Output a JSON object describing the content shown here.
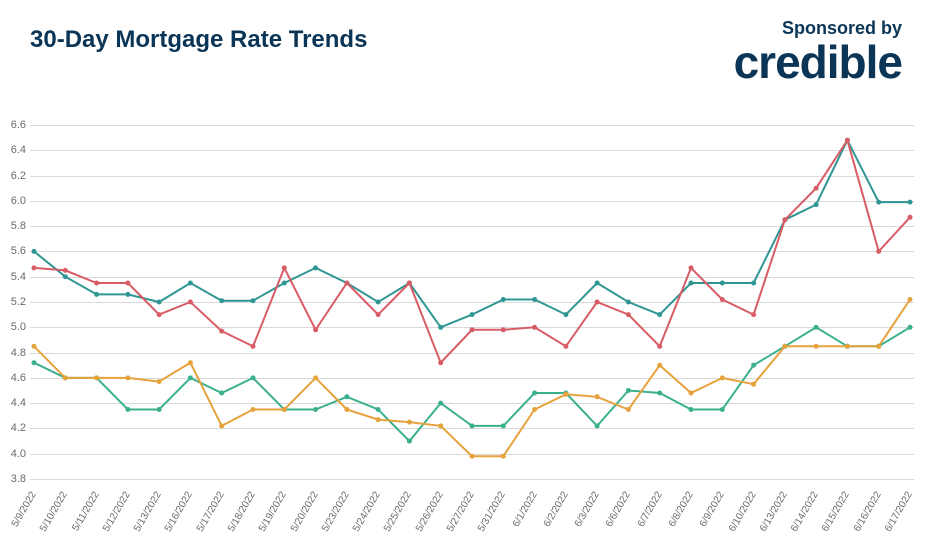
{
  "header": {
    "title": "30-Day Mortgage Rate Trends",
    "sponsor_small": "Sponsored by",
    "sponsor_brand": "credible"
  },
  "chart": {
    "type": "line",
    "background_color": "#ffffff",
    "grid_color": "#d9d9d9",
    "axis_text_color": "#6b6b6b",
    "title_color": "#0a3556",
    "ylim": [
      3.8,
      6.6
    ],
    "ytick_step": 0.2,
    "yticks": [
      3.8,
      4.0,
      4.2,
      4.4,
      4.6,
      4.8,
      5.0,
      5.2,
      5.4,
      5.6,
      5.8,
      6.0,
      6.2,
      6.4,
      6.6
    ],
    "categories": [
      "5/9/2022",
      "5/10/2022",
      "5/11/2022",
      "5/12/2022",
      "5/13/2022",
      "5/16/2022",
      "5/17/2022",
      "5/18/2022",
      "5/19/2022",
      "5/20/2022",
      "5/23/2022",
      "5/24/2022",
      "5/25/2022",
      "5/26/2022",
      "5/27/2022",
      "5/31/2022",
      "6/1/2022",
      "6/2/2022",
      "6/3/2022",
      "6/6/2022",
      "6/7/2022",
      "6/8/2022",
      "6/9/2022",
      "6/10/2022",
      "6/13/2022",
      "6/14/2022",
      "6/15/2022",
      "6/16/2022",
      "6/17/2022"
    ],
    "series": [
      {
        "name": "series1-teal",
        "color": "#2f9693",
        "marker_color": "#2f9693",
        "line_width": 2,
        "marker_radius": 2.5,
        "values": [
          5.6,
          5.4,
          5.26,
          5.26,
          5.2,
          5.35,
          5.21,
          5.21,
          5.35,
          5.47,
          5.35,
          5.2,
          5.35,
          5.0,
          5.1,
          5.22,
          5.22,
          5.1,
          5.35,
          5.2,
          5.1,
          5.35,
          5.35,
          5.35,
          5.85,
          5.97,
          6.48,
          5.99,
          5.99
        ]
      },
      {
        "name": "series2-red",
        "color": "#d85c66",
        "marker_color": "#d85c66",
        "line_width": 2,
        "marker_radius": 2.5,
        "values": [
          5.47,
          5.45,
          5.35,
          5.35,
          5.1,
          5.2,
          4.97,
          4.85,
          5.47,
          4.98,
          5.35,
          5.1,
          5.35,
          4.72,
          4.98,
          4.98,
          5.0,
          4.85,
          5.2,
          5.1,
          4.85,
          5.47,
          5.22,
          5.1,
          5.85,
          6.1,
          6.48,
          5.6,
          5.87
        ]
      },
      {
        "name": "series3-green",
        "color": "#3bb08f",
        "marker_color": "#3bb08f",
        "line_width": 2,
        "marker_radius": 2.5,
        "values": [
          4.72,
          4.6,
          4.6,
          4.35,
          4.35,
          4.6,
          4.48,
          4.6,
          4.35,
          4.35,
          4.45,
          4.35,
          4.1,
          4.4,
          4.22,
          4.22,
          4.48,
          4.48,
          4.22,
          4.5,
          4.48,
          4.35,
          4.35,
          4.7,
          4.85,
          5.0,
          4.85,
          4.85,
          5.0
        ]
      },
      {
        "name": "series4-orange",
        "color": "#e6a23c",
        "marker_color": "#e6a23c",
        "line_width": 2,
        "marker_radius": 2.5,
        "values": [
          4.85,
          4.6,
          4.6,
          4.6,
          4.57,
          4.72,
          4.22,
          4.35,
          4.35,
          4.6,
          4.35,
          4.27,
          4.25,
          4.22,
          3.98,
          3.98,
          4.35,
          4.47,
          4.45,
          4.35,
          4.7,
          4.48,
          4.6,
          4.55,
          4.85,
          4.85,
          4.85,
          4.85,
          5.22
        ]
      }
    ],
    "label_fontsize": 10,
    "tick_fontsize": 11
  }
}
